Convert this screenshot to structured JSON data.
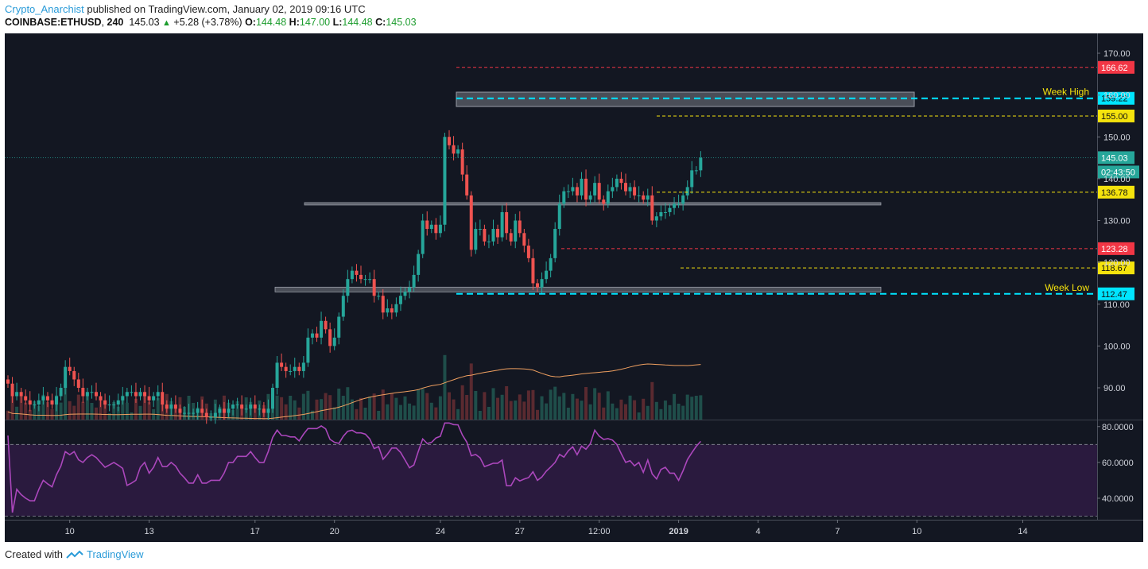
{
  "header": {
    "user": "Crypto_Anarchist",
    "published": "published on TradingView.com, January 02, 2019 09:16 UTC",
    "symbol": "COINBASE:ETHUSD",
    "interval": "240",
    "last": "145.03",
    "change_arrow": "▲",
    "change": "+5.28 (+3.78%)",
    "o_label": "O:",
    "o": "144.48",
    "h_label": "H:",
    "h": "147.00",
    "l_label": "L:",
    "l": "144.48",
    "c_label": "C:",
    "c": "145.03"
  },
  "footer": {
    "created_with": "Created with",
    "brand": "TradingView"
  },
  "colors": {
    "background": "#131722",
    "up": "#26a69a",
    "down": "#ef5350",
    "rsi_line": "#ab47bc",
    "rsi_band": "#2a1a3e",
    "ma_line": "#f0a060",
    "red_level": "#f23645",
    "cyan_level": "#00e5ff",
    "yellow_level": "#f5e30d"
  },
  "chart_data": {
    "type": "candlestick",
    "ylim": [
      82,
      177
    ],
    "price_ticks": [
      "170.00",
      "160.00",
      "150.00",
      "140.00",
      "130.00",
      "120.00",
      "110.00",
      "100.00",
      "90.00"
    ],
    "price_tick_values": [
      170,
      160,
      150,
      140,
      130,
      120,
      110,
      100,
      90
    ],
    "x_ticks": [
      {
        "label": "10",
        "bar": 14
      },
      {
        "label": "13",
        "bar": 32
      },
      {
        "label": "17",
        "bar": 56
      },
      {
        "label": "20",
        "bar": 74
      },
      {
        "label": "24",
        "bar": 98
      },
      {
        "label": "27",
        "bar": 116
      },
      {
        "label": "12:00",
        "bar": 134
      },
      {
        "label": "2019",
        "bar": 152,
        "bold": true
      },
      {
        "label": "4",
        "bar": 170
      },
      {
        "label": "7",
        "bar": 188
      },
      {
        "label": "10",
        "bar": 206
      },
      {
        "label": "14",
        "bar": 230
      }
    ],
    "closes": [
      91,
      88,
      89,
      88,
      87,
      86,
      86,
      87,
      88,
      87,
      86,
      88,
      90,
      95,
      94,
      92,
      90,
      88,
      89,
      89,
      88,
      87,
      86,
      86,
      86,
      87,
      88,
      89,
      89,
      88,
      89,
      88,
      87,
      88,
      89,
      86,
      85,
      86,
      85,
      84,
      84,
      84,
      84,
      85,
      84,
      83,
      83,
      84,
      85,
      84,
      85,
      86,
      86,
      85,
      85,
      86,
      85,
      85,
      84,
      85,
      90,
      96,
      95,
      94,
      94,
      95,
      94,
      96,
      102,
      103,
      102,
      106,
      104,
      100,
      102,
      107,
      112,
      116,
      118,
      117,
      116,
      116,
      116,
      112,
      112,
      108,
      109,
      108,
      110,
      112,
      113,
      114,
      117,
      122,
      130,
      128,
      129,
      127,
      129,
      150,
      148,
      146,
      147,
      141,
      136,
      123,
      128,
      128,
      125,
      125,
      128,
      126,
      132,
      127,
      125,
      130,
      127,
      124,
      121,
      115,
      114,
      116,
      118,
      121,
      128,
      134,
      137,
      137,
      138,
      136,
      140,
      135,
      136,
      139,
      135,
      134,
      137,
      138,
      140,
      139,
      137,
      138,
      136,
      136,
      135,
      136,
      130,
      131,
      132,
      132,
      133,
      134,
      134,
      136,
      138,
      142,
      142,
      145
    ]
  },
  "levels": [
    {
      "value": 166.62,
      "label": "166.62",
      "style": "red"
    },
    {
      "value": 159.22,
      "label": "159.22",
      "style": "cyan",
      "text": "Week High"
    },
    {
      "value": 155.0,
      "label": "155.00",
      "style": "yellow"
    },
    {
      "value": 136.78,
      "label": "136.78",
      "style": "yellow"
    },
    {
      "value": 123.28,
      "label": "123.28",
      "style": "red"
    },
    {
      "value": 118.67,
      "label": "118.67",
      "style": "yellow"
    },
    {
      "value": 112.47,
      "label": "112.47",
      "style": "cyan",
      "text": "Week Low"
    }
  ],
  "current_price": {
    "value": 145.03,
    "label": "145.03",
    "countdown": "02:43:50"
  },
  "rsi": {
    "ticks": [
      "80.0000",
      "60.0000",
      "40.0000"
    ],
    "tick_values": [
      80,
      60,
      40
    ],
    "upper": 70,
    "lower": 30,
    "ylim": [
      28,
      83
    ]
  }
}
